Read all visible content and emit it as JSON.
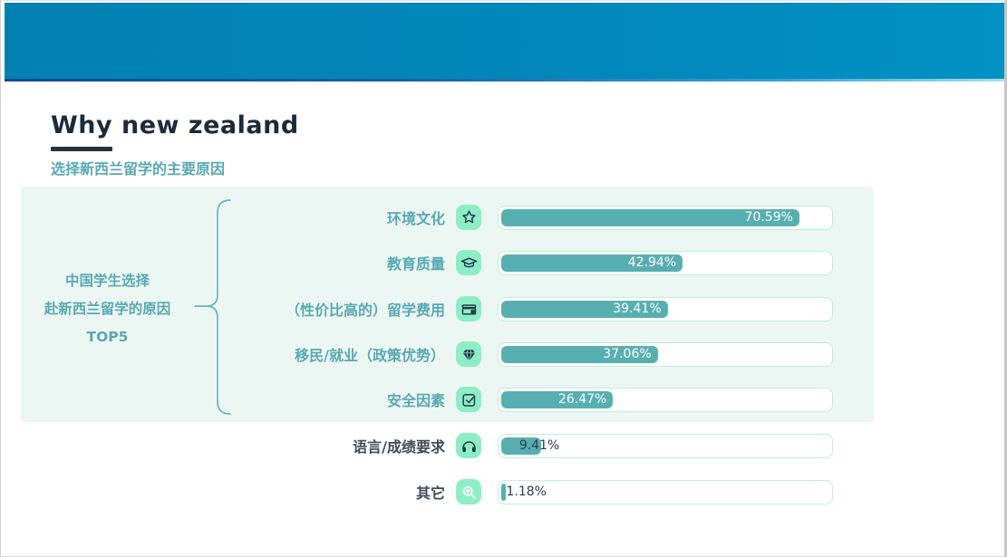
{
  "page": {
    "title": "Why new zealand",
    "subtitle": "选择新西兰留学的主要原因"
  },
  "colors": {
    "header_blue": "#0181b2",
    "header_line_navy": "#17498f",
    "accent_teal": "#57a9b2",
    "bar_fill": "#58afb2",
    "panel_mint": "#ecf7f3",
    "chip_green": "#8deec6",
    "track_border": "#bfeed6",
    "title_navy": "#1c2b3a",
    "dark_label": "#3e4d59"
  },
  "chart_data": {
    "type": "bar",
    "orientation": "horizontal",
    "unit": "%",
    "axis_max_pct": 79,
    "title": "Why new zealand",
    "subtitle": "选择新西兰留学的主要原因",
    "group_label_lines": [
      "中国学生选择",
      "赴新西兰留学的原因",
      "TOP5"
    ],
    "highlighted_top_n": 5,
    "categories": [
      "环境文化",
      "教育质量",
      "（性价比高的）留学费用",
      "移民/就业（政策优势）",
      "安全因素",
      "语言/成绩要求",
      "其它"
    ],
    "values": [
      70.59,
      42.94,
      39.41,
      37.06,
      26.47,
      9.41,
      1.18
    ],
    "value_labels": [
      "70.59%",
      "42.94%",
      "39.41%",
      "37.06%",
      "26.47%",
      "9.41%",
      "1.18%"
    ],
    "icons": [
      "star-icon",
      "graduation-cap-icon",
      "wallet-icon",
      "diamond-icon",
      "checkbox-icon",
      "headphones-icon",
      "magnifier-icon"
    ],
    "legend": "none",
    "grid": false
  }
}
